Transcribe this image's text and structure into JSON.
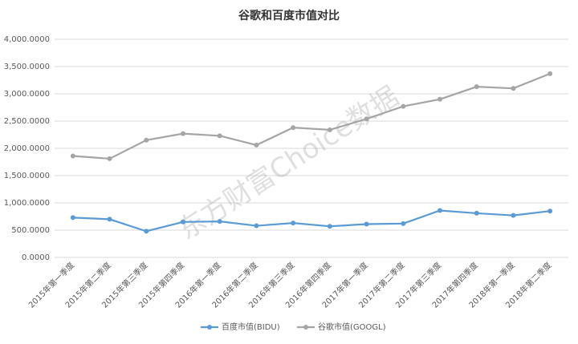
{
  "chart_data": {
    "type": "line",
    "title": "谷歌和百度市值对比",
    "watermark": "东方财富Choice数据",
    "categories": [
      "2015年第一季度",
      "2015年第二季度",
      "2015年第三季度",
      "2015年第四季度",
      "2016年第一季度",
      "2016年第二季度",
      "2016年第三季度",
      "2016年第四季度",
      "2017年第一季度",
      "2017年第二季度",
      "2017年第三季度",
      "2017年第四季度",
      "2018年第一季度",
      "2018年第二季度"
    ],
    "series": [
      {
        "name": "百度市值(BIDU)",
        "color": "#5b9bd5",
        "values": [
          730,
          700,
          480,
          650,
          660,
          580,
          630,
          570,
          610,
          620,
          860,
          810,
          770,
          850
        ]
      },
      {
        "name": "谷歌市值(GOOGL)",
        "color": "#a5a5a5",
        "values": [
          1860,
          1810,
          2150,
          2270,
          2230,
          2060,
          2380,
          2340,
          2540,
          2770,
          2900,
          3130,
          3100,
          3370
        ]
      }
    ],
    "ylim": [
      0,
      4000
    ],
    "yticks": [
      {
        "value": 0,
        "label": "0.0000"
      },
      {
        "value": 500,
        "label": "500.0000"
      },
      {
        "value": 1000,
        "label": "1,000.0000"
      },
      {
        "value": 1500,
        "label": "1,500.0000"
      },
      {
        "value": 2000,
        "label": "2,000.0000"
      },
      {
        "value": 2500,
        "label": "2,500.0000"
      },
      {
        "value": 3000,
        "label": "3,000.0000"
      },
      {
        "value": 3500,
        "label": "3,500.0000"
      },
      {
        "value": 4000,
        "label": "4,000.0000"
      }
    ],
    "grid": true,
    "legend": "bottom"
  }
}
